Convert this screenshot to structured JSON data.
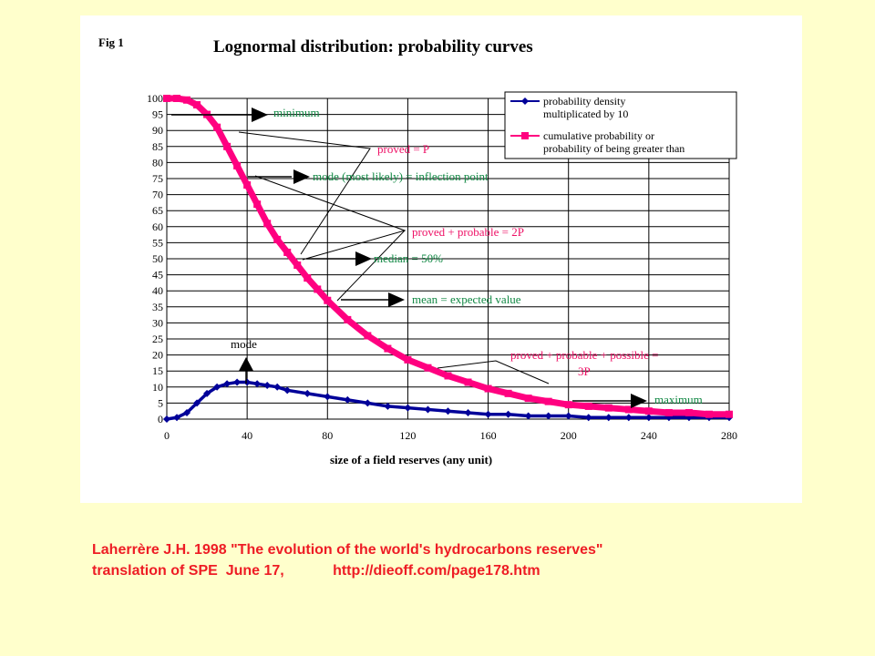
{
  "figure": {
    "fig_label": "Fig 1",
    "title": "Lognormal distribution: probability curves"
  },
  "caption": {
    "line1": "Laherrère J.H. 1998 \"The evolution of the world's hydrocarbons reserves\"",
    "line2": "translation of SPE  June 17,            http://dieoff.com/page178.htm"
  },
  "annotations": {
    "minimum": "minimum",
    "proved_p": "proved = P",
    "mode_inflection": "mode (most likely) = inflection point",
    "proved_probable_2p": "proved + probable = 2P",
    "median": "median = 50%",
    "mean": "mean = expected value",
    "mode": "mode",
    "proved_probable_possible_line1": "proved + probable + possible =",
    "proved_probable_possible_line2": "3P",
    "maximum": "maximum"
  },
  "colors": {
    "background": "#ffffcc",
    "panel": "#ffffff",
    "density_series": "#000099",
    "cumulative_series": "#ff0080",
    "caption_text": "#ee1c24",
    "red_annotation": "#ee1166",
    "green_annotation": "#118844"
  },
  "chart_data": {
    "type": "line",
    "title": "Lognormal distribution: probability curves",
    "xlabel": "size of a field reserves (any unit)",
    "ylabel": "",
    "xlim": [
      0,
      280
    ],
    "ylim": [
      0,
      100
    ],
    "x_ticks": [
      0,
      40,
      80,
      120,
      160,
      200,
      240,
      280
    ],
    "y_ticks": [
      0,
      5,
      10,
      15,
      20,
      25,
      30,
      35,
      40,
      45,
      50,
      55,
      60,
      65,
      70,
      75,
      80,
      85,
      90,
      95,
      100
    ],
    "grid": true,
    "legend_position": "top-right",
    "series": [
      {
        "name": "probability density multiplicated by 10",
        "color": "#000099",
        "x": [
          0,
          5,
          10,
          15,
          20,
          25,
          30,
          35,
          40,
          45,
          50,
          55,
          60,
          70,
          80,
          90,
          100,
          110,
          120,
          130,
          140,
          150,
          160,
          170,
          180,
          190,
          200,
          210,
          220,
          230,
          240,
          250,
          260,
          270,
          280
        ],
        "y": [
          0,
          0.5,
          2,
          5,
          8,
          10,
          11,
          11.5,
          11.5,
          11,
          10.5,
          10,
          9,
          8,
          7,
          6,
          5,
          4,
          3.5,
          3,
          2.5,
          2,
          1.5,
          1.5,
          1,
          1,
          1,
          0.5,
          0.5,
          0.5,
          0.5,
          0.5,
          0.5,
          0.5,
          0.5
        ]
      },
      {
        "name": "cumulative probability or probability of being greater than",
        "color": "#ff0080",
        "x": [
          0,
          5,
          10,
          15,
          20,
          25,
          30,
          35,
          40,
          45,
          50,
          55,
          60,
          65,
          70,
          75,
          80,
          90,
          100,
          110,
          120,
          130,
          140,
          150,
          160,
          170,
          180,
          190,
          200,
          210,
          220,
          230,
          240,
          250,
          260,
          270,
          280
        ],
        "y": [
          100,
          100,
          99.5,
          98,
          95,
          91,
          85,
          79,
          73,
          67,
          61,
          56,
          52,
          48,
          44,
          40.5,
          37,
          31,
          26,
          22,
          18.5,
          16,
          13.5,
          11.5,
          9.5,
          8,
          6.5,
          5.5,
          4.5,
          4,
          3.5,
          3,
          2.5,
          2,
          2,
          1.5,
          1.5
        ]
      }
    ],
    "legend": [
      {
        "line1": "probability density",
        "line2": "multiplicated by 10"
      },
      {
        "line1": "cumulative probability or",
        "line2": "probability of being greater than"
      }
    ]
  }
}
